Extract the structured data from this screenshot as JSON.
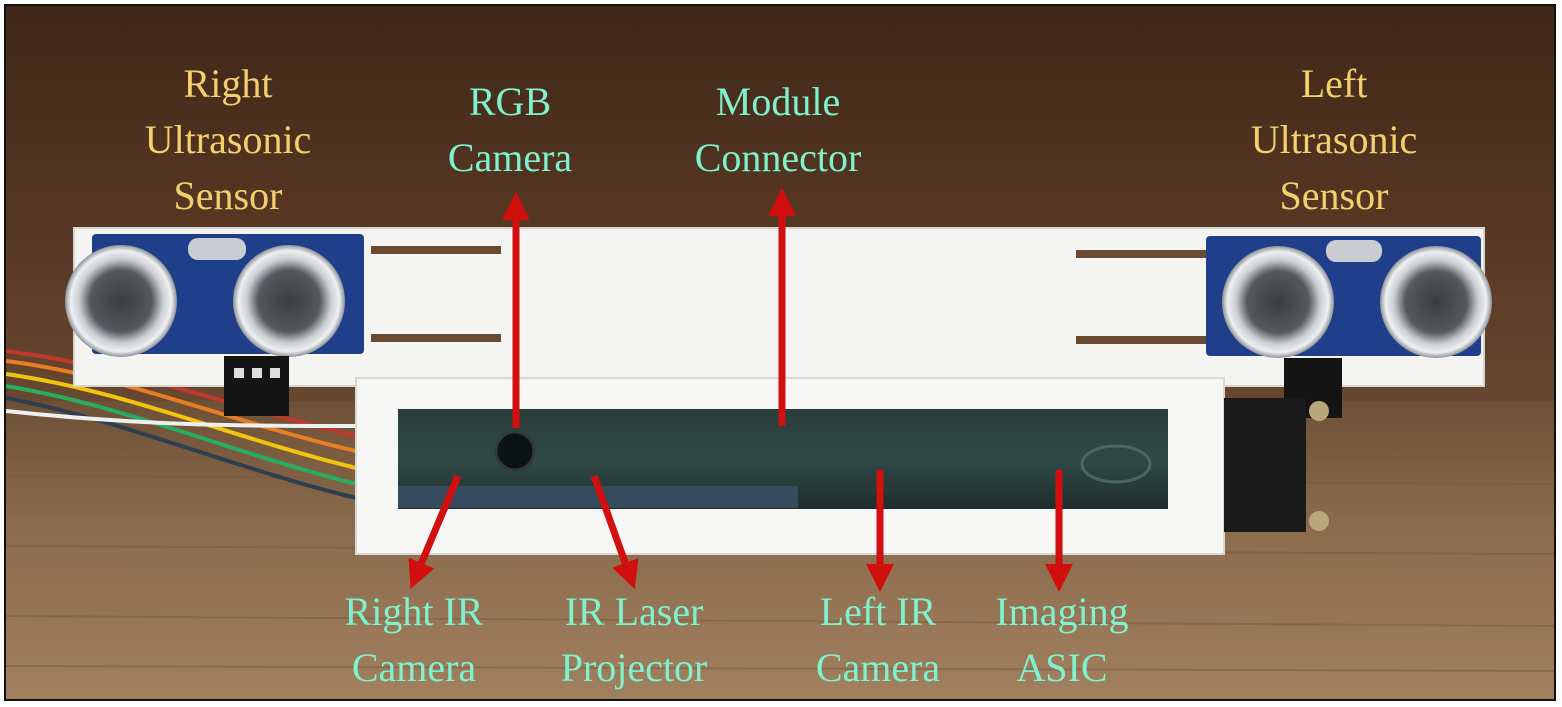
{
  "labels": {
    "right_ultrasonic": {
      "line1": "Right",
      "line2": "Ultrasonic",
      "line3": "Sensor"
    },
    "left_ultrasonic": {
      "line1": "Left",
      "line2": "Ultrasonic",
      "line3": "Sensor"
    },
    "rgb_camera": {
      "line1": "RGB",
      "line2": "Camera"
    },
    "module_connector": {
      "line1": "Module",
      "line2": "Connector"
    },
    "right_ir_camera": {
      "line1": "Right IR",
      "line2": "Camera"
    },
    "ir_laser_projector": {
      "line1": "IR Laser",
      "line2": "Projector"
    },
    "left_ir_camera": {
      "line1": "Left IR",
      "line2": "Camera"
    },
    "imaging_asic": {
      "line1": "Imaging",
      "line2": "ASIC"
    }
  },
  "colors": {
    "ultrasonic_label": "#f4cf6e",
    "camera_label": "#7ff2cd",
    "arrow": "#d10f0f",
    "wall": "#4a2e1c",
    "table": "#8a6a4c"
  },
  "icons": {
    "ultrasonic_transducer": "ultrasonic-transducer-icon",
    "arrow": "red-arrow-icon"
  }
}
